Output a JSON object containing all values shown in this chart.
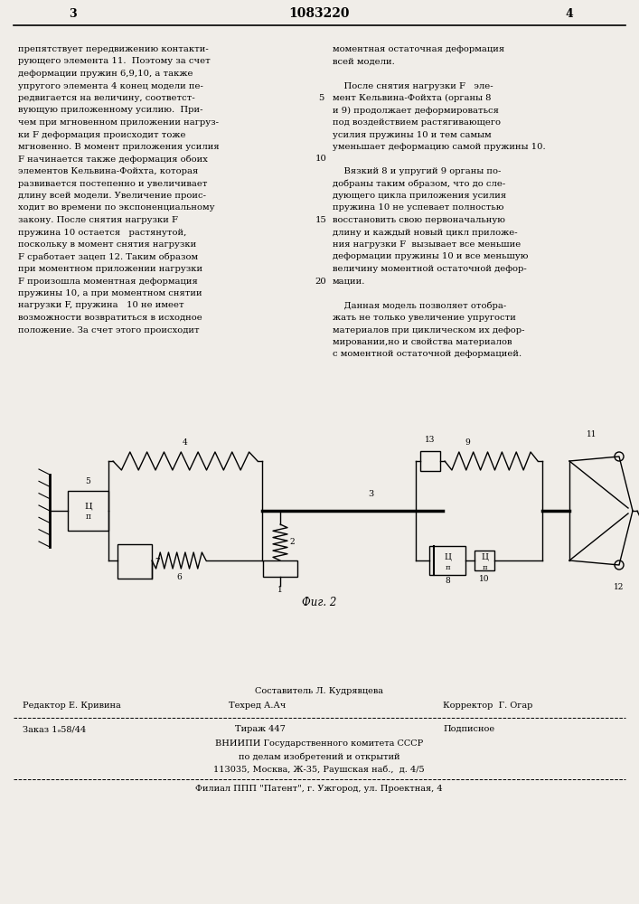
{
  "page_color": "#f0ede8",
  "patent_number": "1083220",
  "page_left": "3",
  "page_right": "4",
  "left_column_text": [
    "препятствует передвижению контакти-",
    "рующего элемента 11.  Поэтому за счет",
    "деформации пружин 6,9,10, а также",
    "упругого элемента 4 конец модели пе-",
    "редвигается на величину, соответст-",
    "вующую приложенному усилию.  При-",
    "чем при мгновенном приложении нагруз-",
    "ки F деформация происходит тоже",
    "мгновенно. В момент приложения усилия",
    "F начинается также деформация обоих",
    "элементов Кельвина-Фойхта, которая",
    "развивается постепенно и увеличивает",
    "длину всей модели. Увеличение проис-",
    "ходит во времени по экспоненциальному",
    "закону. После снятия нагрузки F",
    "пружина 10 остается   растянутой,",
    "поскольку в момент снятия нагрузки",
    "F сработает зацеп 12. Таким образом",
    "при моментном приложении нагрузки",
    "F произошла моментная деформация",
    "пружины 10, а при моментном снятии",
    "нагрузки F, пружина   10 не имеет",
    "возможности возвратиться в исходное",
    "положение. За счет этого происходит"
  ],
  "right_col_line1": "моментная остаточная деформация",
  "right_col_line2": "всей модели.",
  "right_col_p2": [
    "    После снятия нагрузки F   эле-",
    "мент Кельвина-Фойхта (органы 8",
    "и 9) продолжает деформироваться",
    "под воздействием растягивающего",
    "усилия пружины 10 и тем самым",
    "уменьшает деформацию самой пружины 10."
  ],
  "right_col_p3": [
    "    Вязкий 8 и упругий 9 органы по-",
    "добраны таким образом, что до сле-",
    "дующего цикла приложения усилия",
    "пружина 10 не успевает полностью",
    "восстановить свою первоначальную",
    "длину и каждый новый цикл приложе-",
    "ния нагрузки F  вызывает все меньшие",
    "деформации пружины 10 и все меньшую",
    "величину моментной остаточной дефор-",
    "мации."
  ],
  "right_col_p4": [
    "    Данная модель позволяет отобра-",
    "жать не только увеличение упругости",
    "материалов при циклическом их дефор-",
    "мировании,но и свойства материалов",
    "с моментной остаточной деформацией."
  ],
  "line_nums": {
    "4": "5",
    "9": "10",
    "14": "15",
    "19": "20"
  },
  "fig_caption": "Фиг. 2",
  "footer_composer": "Составитель Л. Кудрявцева",
  "footer_editor": "Редактор Е. Кривина",
  "footer_tech": "Техред А.Ач",
  "footer_corrector": "Корректор  Г. Огар",
  "footer_order": "Заказ 1ₔ58/44",
  "footer_circulation": "Тираж 447",
  "footer_subscription": "Подписное",
  "footer_org1": "ВНИИПИ Государственного комитета СССР",
  "footer_org2": "по делам изобретений и открытий",
  "footer_address": "113035, Москва, Ж-35, Раушская наб.,  д. 4/5",
  "footer_branch": "Филиал ППП \"Патент\", г. Ужгород, ул. Проектная, 4"
}
